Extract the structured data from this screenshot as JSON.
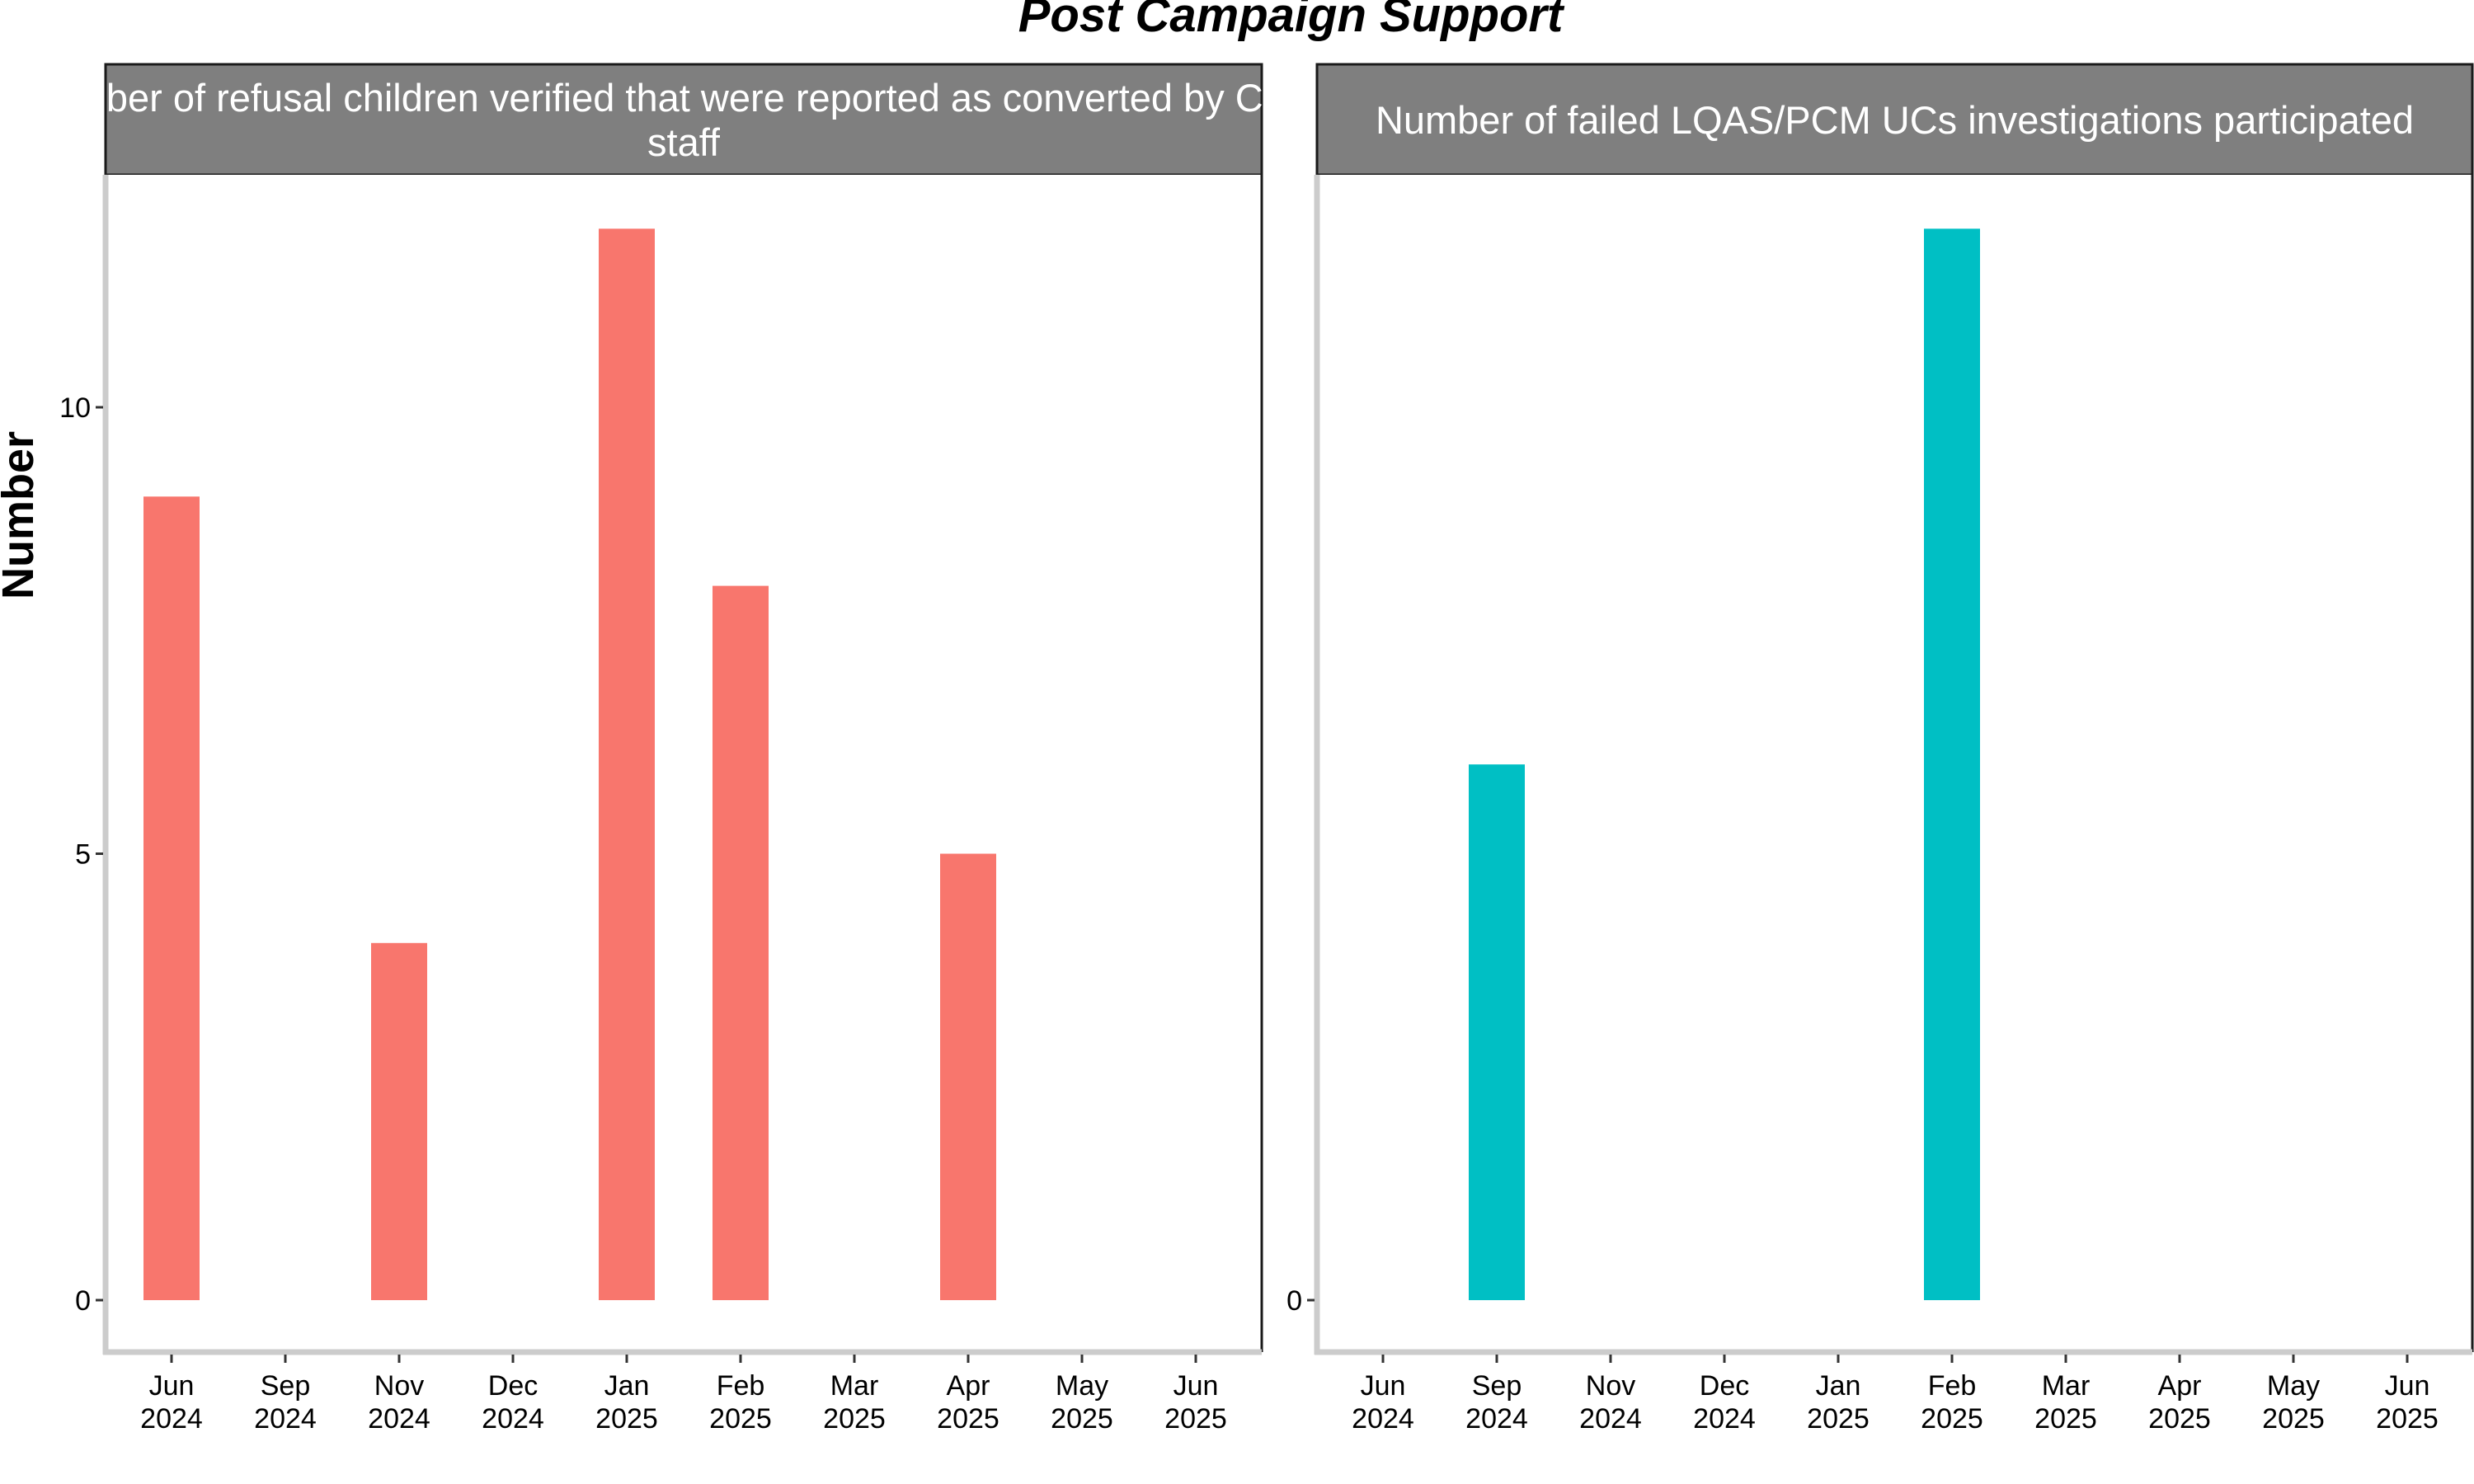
{
  "chart_data": {
    "type": "bar",
    "title": "Post Campaign Support",
    "ylabel": "Number",
    "xlabel": "",
    "x_ticks": [
      "Jun 2024",
      "Sep 2024",
      "Nov 2024",
      "Dec 2024",
      "Jan 2025",
      "Feb 2025",
      "Mar 2025",
      "Apr 2025",
      "May 2025",
      "Jun 2025"
    ],
    "grid": false,
    "legend": "none",
    "panels": [
      {
        "strip_title": [
          "Number of refusal children verified that were reported as converted by CCSP",
          "staff"
        ],
        "color": "#F8766D",
        "y_ticks": [
          0,
          5,
          10
        ],
        "ylim": [
          -0.6,
          12.6
        ],
        "bars": [
          {
            "x": "Jun 2024",
            "value": 9
          },
          {
            "x": "Nov 2024",
            "value": 4
          },
          {
            "x": "Jan 2025",
            "value": 12
          },
          {
            "x": "Feb 2025",
            "value": 8
          },
          {
            "x": "Apr 2025",
            "value": 5
          }
        ]
      },
      {
        "strip_title": [
          "Number of failed LQAS/PCM UCs investigations participated"
        ],
        "color": "#00BFC4",
        "y_ticks": [
          0
        ],
        "ylim": [
          -0.6,
          12.6
        ],
        "bars": [
          {
            "x": "Sep 2024",
            "value": 6
          },
          {
            "x": "Feb 2025",
            "value": 12
          }
        ]
      }
    ]
  }
}
